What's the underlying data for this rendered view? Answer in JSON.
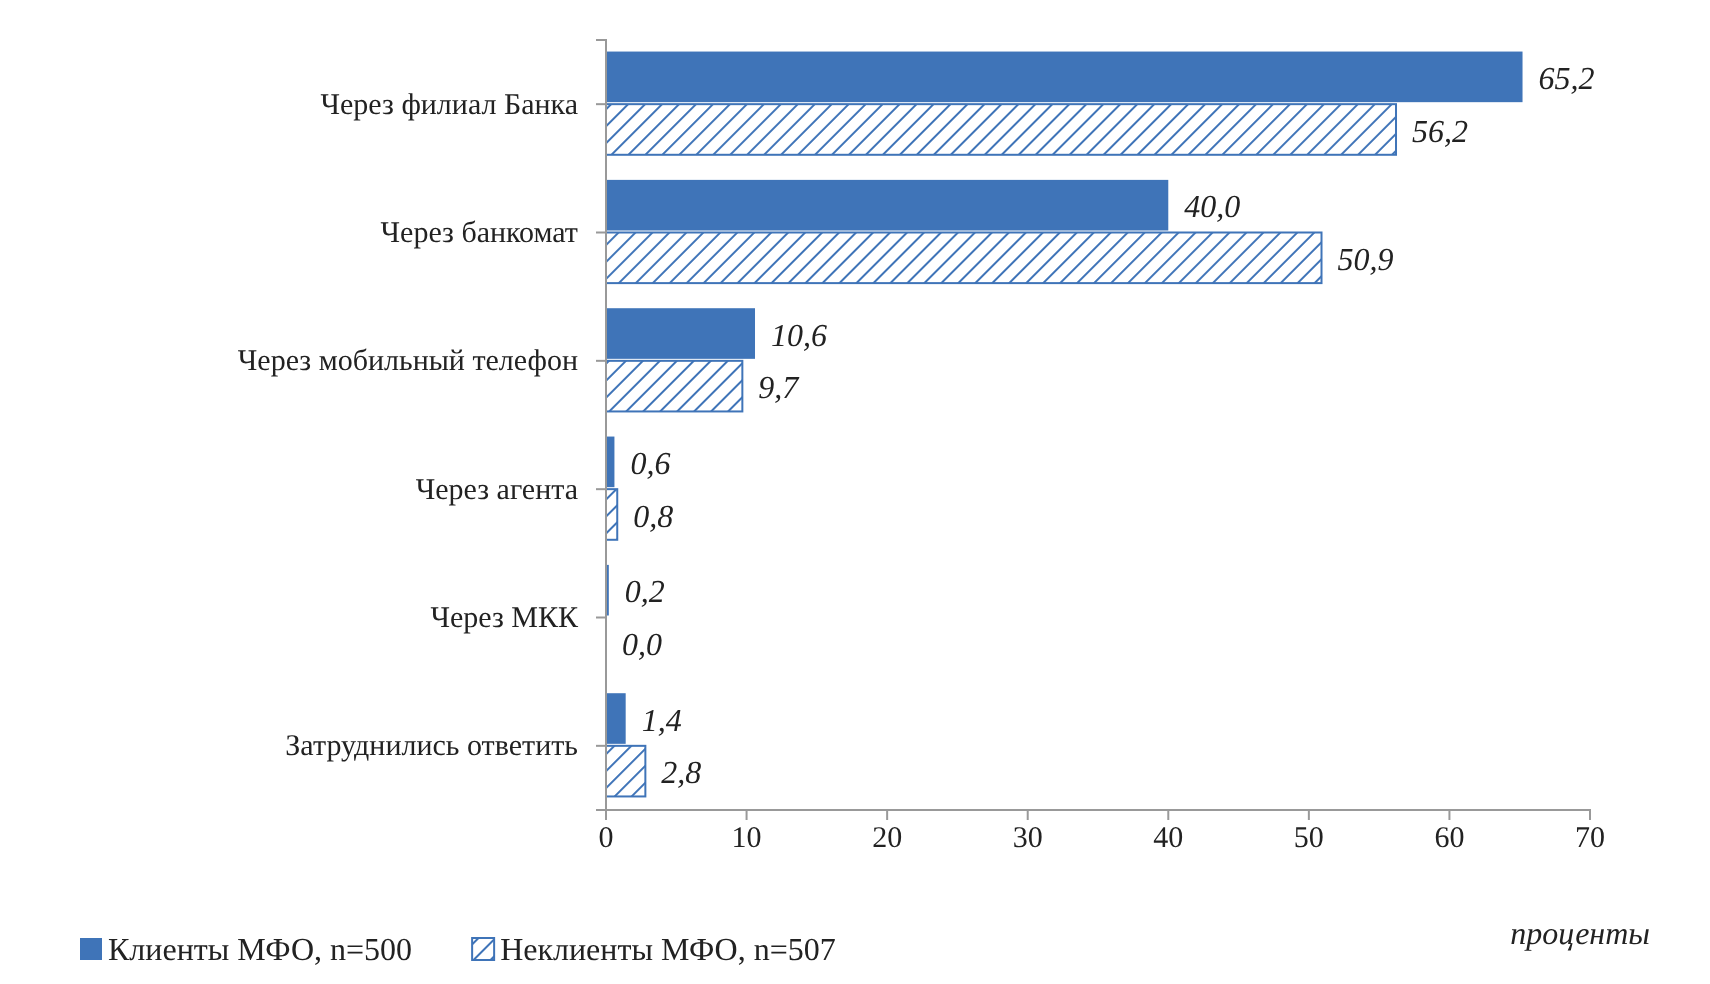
{
  "chart_data": {
    "type": "bar",
    "orientation": "horizontal",
    "categories": [
      "Через филиал Банка",
      "Через банкомат",
      "Через мобильный телефон",
      "Через агента",
      "Через МКК",
      "Затруднились ответить"
    ],
    "series": [
      {
        "name": "Клиенты МФО, n=500",
        "color": "#3f74b8",
        "values": [
          65.2,
          40.0,
          10.6,
          0.6,
          0.2,
          1.4
        ],
        "value_labels": [
          "65,2",
          "40,0",
          "10,6",
          "0,6",
          "0,2",
          "1,4"
        ]
      },
      {
        "name": "Неклиенты МФО, n=507",
        "color": "#3f74b8",
        "values": [
          56.2,
          50.9,
          9.7,
          0.8,
          0.0,
          2.8
        ],
        "value_labels": [
          "56,2",
          "50,9",
          "9,7",
          "0,8",
          "0,0",
          "2,8"
        ]
      }
    ],
    "xlim": [
      0,
      70
    ],
    "xticks": [
      0,
      10,
      20,
      30,
      40,
      50,
      60,
      70
    ],
    "xlabel": "проценты",
    "legend": "bottom",
    "grid": false
  }
}
